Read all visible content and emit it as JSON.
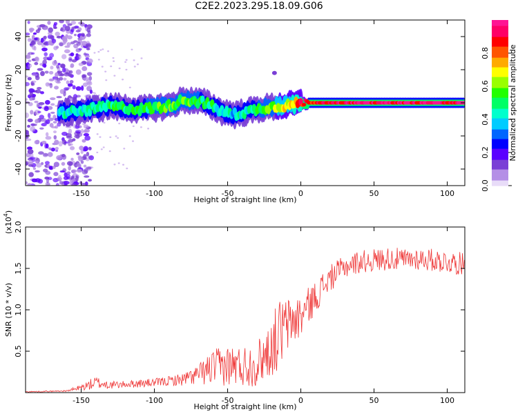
{
  "figure": {
    "title": "C2E2.2023.295.18.09.G06"
  },
  "chart_data": [
    {
      "type": "heatmap",
      "xlabel": "Height of straight line (km)",
      "ylabel": "Frequency (Hz)",
      "xlim": [
        -188,
        112
      ],
      "ylim": [
        -50,
        50
      ],
      "xticks": [
        -150,
        -100,
        -50,
        0,
        50,
        100
      ],
      "yticks": [
        -40,
        -20,
        0,
        20,
        40
      ],
      "colorbar": {
        "label": "Normalized spectral amplitude",
        "range": [
          0,
          1
        ],
        "ticks": [
          "0.0",
          "0.2",
          "0.4",
          "0.6",
          "0.8"
        ],
        "colormap": [
          "#e8dcf8",
          "#b58fe6",
          "#7a3fd6",
          "#5a00ff",
          "#0000ff",
          "#0066ff",
          "#00ccff",
          "#00ffcc",
          "#00ff66",
          "#22ff00",
          "#99ff00",
          "#ffff00",
          "#ffaa00",
          "#ff5500",
          "#ff0000",
          "#ff0066",
          "#ff1493"
        ]
      },
      "ridge": {
        "x": [
          -165,
          -150,
          -130,
          -110,
          -90,
          -80,
          -65,
          -55,
          -45,
          -35,
          -25,
          -15,
          -5,
          0,
          10,
          20,
          40,
          60,
          80,
          100,
          112
        ],
        "frequency": [
          -6,
          -5,
          -2,
          -4,
          -2,
          2,
          0,
          -5,
          -7,
          -5,
          -3,
          -2,
          -1,
          0,
          0,
          0,
          0,
          0,
          0,
          0,
          0
        ],
        "amplitude": [
          0.4,
          0.45,
          0.5,
          0.5,
          0.55,
          0.55,
          0.5,
          0.45,
          0.4,
          0.45,
          0.55,
          0.65,
          0.75,
          0.85,
          0.9,
          0.95,
          0.95,
          0.95,
          0.95,
          0.95,
          0.95
        ]
      },
      "noise_band": {
        "x_range": [
          -188,
          -143
        ],
        "frequency_range": [
          -50,
          50
        ],
        "amplitude": 0.1
      },
      "blob": {
        "x": -18,
        "frequency": 18,
        "amplitude": 0.15
      }
    },
    {
      "type": "line",
      "xlabel": "Height of straight line (km)",
      "ylabel": "SNR (10 * v/v)",
      "y_multiplier": "(x10",
      "y_multiplier_exp": "4",
      "y_multiplier_close": ")",
      "xlim": [
        -188,
        112
      ],
      "ylim": [
        0,
        2.0
      ],
      "xticks": [
        -150,
        -100,
        -50,
        0,
        50,
        100
      ],
      "yticks": [
        "0.5",
        "1.0",
        "1.5",
        "2.0"
      ],
      "line_color": "#ee3333",
      "series": [
        {
          "x": [
            -188,
            -160,
            -150,
            -140,
            -130,
            -120,
            -110,
            -100,
            -90,
            -80,
            -70,
            -60,
            -50,
            -40,
            -30,
            -25,
            -20,
            -15,
            -10,
            -5,
            0,
            5,
            10,
            15,
            20,
            25,
            30,
            40,
            50,
            60,
            70,
            80,
            90,
            100,
            112
          ],
          "values": [
            0.01,
            0.02,
            0.06,
            0.12,
            0.09,
            0.1,
            0.11,
            0.12,
            0.14,
            0.16,
            0.22,
            0.3,
            0.33,
            0.32,
            0.35,
            0.45,
            0.55,
            0.7,
            0.8,
            0.87,
            0.92,
            1.05,
            1.15,
            1.28,
            1.38,
            1.45,
            1.52,
            1.58,
            1.6,
            1.62,
            1.6,
            1.62,
            1.6,
            1.58,
            1.55
          ],
          "noise": [
            0.005,
            0.008,
            0.04,
            0.08,
            0.05,
            0.04,
            0.05,
            0.05,
            0.06,
            0.08,
            0.12,
            0.22,
            0.25,
            0.25,
            0.28,
            0.3,
            0.35,
            0.45,
            0.35,
            0.3,
            0.28,
            0.22,
            0.2,
            0.18,
            0.16,
            0.15,
            0.14,
            0.14,
            0.14,
            0.14,
            0.14,
            0.14,
            0.14,
            0.14,
            0.14
          ]
        }
      ]
    }
  ]
}
